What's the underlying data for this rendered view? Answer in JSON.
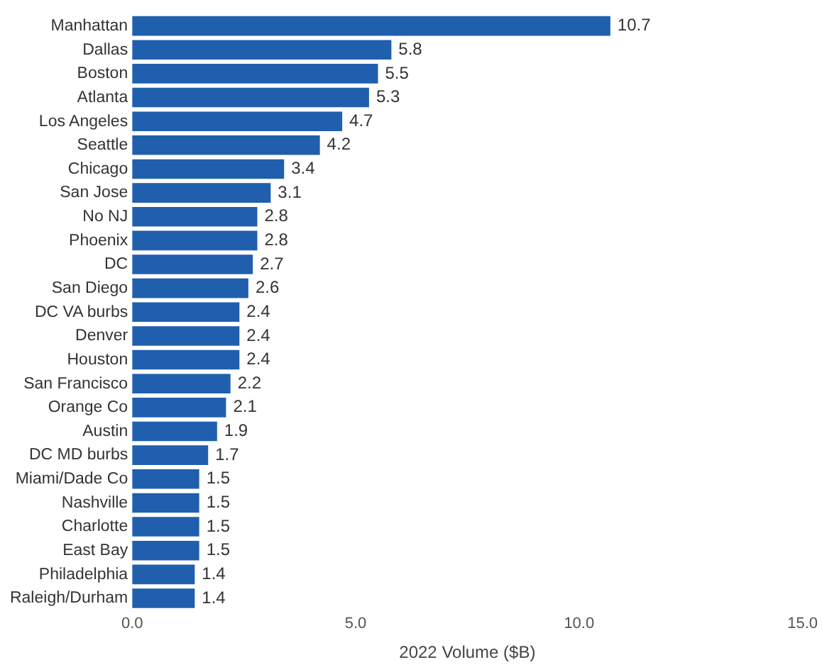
{
  "chart_data": {
    "type": "bar",
    "orientation": "horizontal",
    "xlabel": "2022 Volume ($B)",
    "categories": [
      "Manhattan",
      "Dallas",
      "Boston",
      "Atlanta",
      "Los Angeles",
      "Seattle",
      "Chicago",
      "San Jose",
      "No NJ",
      "Phoenix",
      "DC",
      "San Diego",
      "DC VA burbs",
      "Denver",
      "Houston",
      "San Francisco",
      "Orange Co",
      "Austin",
      "DC MD burbs",
      "Miami/Dade Co",
      "Nashville",
      "Charlotte",
      "East Bay",
      "Philadelphia",
      "Raleigh/Durham"
    ],
    "values": [
      10.7,
      5.8,
      5.5,
      5.3,
      4.7,
      4.2,
      3.4,
      3.1,
      2.8,
      2.8,
      2.7,
      2.6,
      2.4,
      2.4,
      2.4,
      2.2,
      2.1,
      1.9,
      1.7,
      1.5,
      1.5,
      1.5,
      1.5,
      1.4,
      1.4
    ],
    "color": "#1f5fae",
    "xlim": [
      0,
      15
    ],
    "xticks": [
      {
        "value": 0,
        "label": "0.0"
      },
      {
        "value": 5,
        "label": "5.0"
      },
      {
        "value": 10,
        "label": "10.0"
      },
      {
        "value": 15,
        "label": "15.0"
      }
    ],
    "data_labels": true,
    "grid": false,
    "legend": false
  }
}
